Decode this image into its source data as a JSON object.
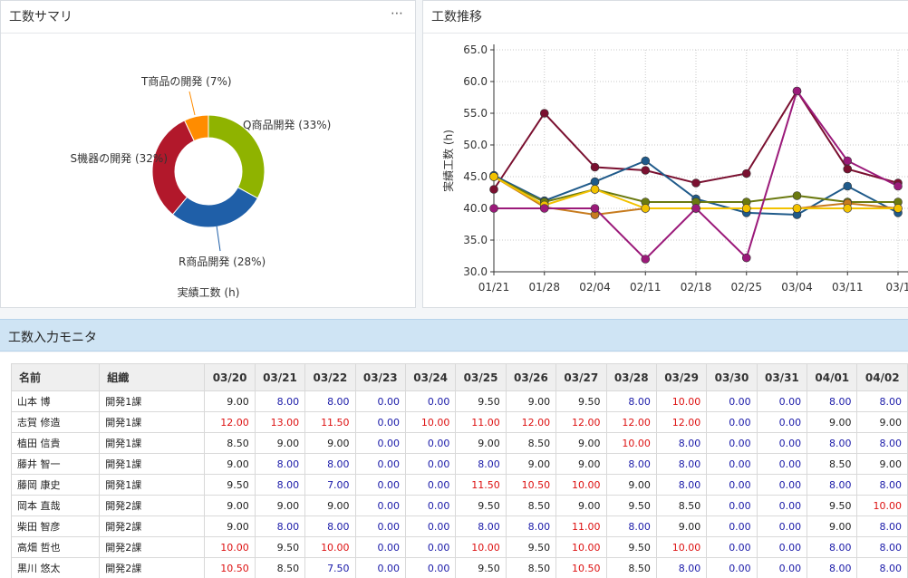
{
  "summary_panel": {
    "title": "工数サマリ",
    "menu_icon": "more-horizontal-icon",
    "donut_caption": "実績工数 (h)"
  },
  "trend_panel": {
    "title": "工数推移"
  },
  "monitor": {
    "title": "工数入力モニタ",
    "headers": {
      "name": "名前",
      "org": "組織"
    },
    "dates": [
      "03/20",
      "03/21",
      "03/22",
      "03/23",
      "03/24",
      "03/25",
      "03/26",
      "03/27",
      "03/28",
      "03/29",
      "03/30",
      "03/31",
      "04/01",
      "04/02"
    ],
    "rows": [
      {
        "name": "山本 博",
        "org": "開発1課",
        "values": [
          "9.00",
          "8.00",
          "8.00",
          "0.00",
          "0.00",
          "9.50",
          "9.00",
          "9.50",
          "8.00",
          "10.00",
          "0.00",
          "0.00",
          "8.00",
          "8.00"
        ]
      },
      {
        "name": "志賀 修造",
        "org": "開発1課",
        "values": [
          "12.00",
          "13.00",
          "11.50",
          "0.00",
          "10.00",
          "11.00",
          "12.00",
          "12.00",
          "12.00",
          "12.00",
          "0.00",
          "0.00",
          "9.00",
          "9.00"
        ]
      },
      {
        "name": "植田 信貴",
        "org": "開発1課",
        "values": [
          "8.50",
          "9.00",
          "9.00",
          "0.00",
          "0.00",
          "9.00",
          "8.50",
          "9.00",
          "10.00",
          "8.00",
          "0.00",
          "0.00",
          "8.00",
          "8.00"
        ]
      },
      {
        "name": "藤井 智一",
        "org": "開発1課",
        "values": [
          "9.00",
          "8.00",
          "8.00",
          "0.00",
          "0.00",
          "8.00",
          "9.00",
          "9.00",
          "8.00",
          "8.00",
          "0.00",
          "0.00",
          "8.50",
          "9.00"
        ]
      },
      {
        "name": "藤岡 康史",
        "org": "開発1課",
        "values": [
          "9.50",
          "8.00",
          "7.00",
          "0.00",
          "0.00",
          "11.50",
          "10.50",
          "10.00",
          "9.00",
          "8.00",
          "0.00",
          "0.00",
          "8.00",
          "8.00"
        ]
      },
      {
        "name": "岡本 直哉",
        "org": "開発2課",
        "values": [
          "9.00",
          "9.00",
          "9.00",
          "0.00",
          "0.00",
          "9.50",
          "8.50",
          "9.00",
          "9.50",
          "8.50",
          "0.00",
          "0.00",
          "9.50",
          "10.00"
        ]
      },
      {
        "name": "柴田 智彦",
        "org": "開発2課",
        "values": [
          "9.00",
          "8.00",
          "8.00",
          "0.00",
          "0.00",
          "8.00",
          "8.00",
          "11.00",
          "8.00",
          "9.00",
          "0.00",
          "0.00",
          "9.00",
          "8.00"
        ]
      },
      {
        "name": "高畑 哲也",
        "org": "開発2課",
        "values": [
          "10.00",
          "9.50",
          "10.00",
          "0.00",
          "0.00",
          "10.00",
          "9.50",
          "10.00",
          "9.50",
          "10.00",
          "0.00",
          "0.00",
          "8.00",
          "8.00"
        ]
      },
      {
        "name": "黒川 悠太",
        "org": "開発2課",
        "values": [
          "10.50",
          "8.50",
          "7.50",
          "0.00",
          "0.00",
          "9.50",
          "8.50",
          "10.50",
          "8.50",
          "8.00",
          "0.00",
          "0.00",
          "8.00",
          "8.00"
        ]
      }
    ],
    "value_colors": {
      "normal": "#222222",
      "under": "#1a1aa8",
      "over": "#dd1111"
    }
  },
  "chart_data": [
    {
      "type": "pie",
      "variant": "donut",
      "caption": "実績工数 (h)",
      "slices": [
        {
          "label": "Q商品開発 (33%)",
          "value": 33,
          "color": "#8fb300"
        },
        {
          "label": "R商品開発 (28%)",
          "value": 28,
          "color": "#1f5fa8"
        },
        {
          "label": "S機器の開発 (32%)",
          "value": 32,
          "color": "#b2182b"
        },
        {
          "label": "T商品の開発 (7%)",
          "value": 7,
          "color": "#ff8c00"
        }
      ]
    },
    {
      "type": "line",
      "ylabel": "実績工数 (h)",
      "ylim": [
        30.0,
        65.0
      ],
      "yticks": [
        "65.0",
        "60.0",
        "55.0",
        "50.0",
        "45.0",
        "40.0",
        "35.0",
        "30.0"
      ],
      "x": [
        "01/21",
        "01/28",
        "02/04",
        "02/11",
        "02/18",
        "02/25",
        "03/04",
        "03/11",
        "03/1"
      ],
      "series": [
        {
          "color": "#7a1030",
          "values": [
            43,
            55,
            46.5,
            46,
            44,
            45.5,
            58.5,
            46.2,
            44
          ]
        },
        {
          "color": "#1f5a8a",
          "values": [
            45.2,
            41.2,
            44.2,
            47.5,
            41.5,
            39.3,
            39,
            43.5,
            39.3
          ]
        },
        {
          "color": "#6b7a10",
          "values": [
            45,
            41,
            43,
            41,
            41,
            41,
            42,
            41,
            41
          ]
        },
        {
          "color": "#c77b1e",
          "values": [
            45,
            40.2,
            39,
            40,
            40,
            40,
            40,
            40.8,
            40
          ]
        },
        {
          "color": "#f2c200",
          "values": [
            45,
            40.5,
            43,
            40,
            40,
            40,
            40,
            40,
            40
          ]
        },
        {
          "color": "#9b1a7a",
          "values": [
            40,
            40,
            40,
            32,
            40,
            32.2,
            58.5,
            47.5,
            43.5
          ]
        }
      ]
    }
  ]
}
